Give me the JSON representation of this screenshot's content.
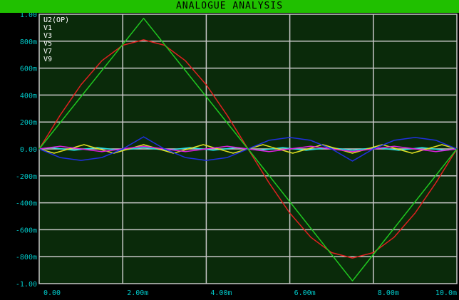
{
  "window": {
    "title": "ANALOGUE ANALYSIS"
  },
  "colors": {
    "title_bar": "#20c000",
    "plot_bg": "#0a2a0a",
    "grid": "#c8c8c8",
    "tick_text": "#00c8c8",
    "legend_text": "#ffffff"
  },
  "chart_data": {
    "type": "line",
    "title": "ANALOGUE ANALYSIS",
    "xlim": [
      0,
      10
    ],
    "ylim": [
      -1.0,
      1.0
    ],
    "grid": true,
    "legend_position": "top-left",
    "legend": [
      "U2(OP)",
      "V1",
      "V3",
      "V5",
      "V7",
      "V9"
    ],
    "x_ticks": [
      "0.00",
      "2.00m",
      "4.00m",
      "6.00m",
      "8.00m",
      "10.0m"
    ],
    "x_tick_values": [
      0,
      2,
      4,
      6,
      8,
      10
    ],
    "y_ticks": [
      "1.00",
      "800m",
      "600m",
      "400m",
      "200m",
      "0.00",
      "-200m",
      "-400m",
      "-600m",
      "-800m",
      "-1.00"
    ],
    "y_tick_values": [
      1.0,
      0.8,
      0.6,
      0.4,
      0.2,
      0.0,
      -0.2,
      -0.4,
      -0.6,
      -0.8,
      -1.0
    ],
    "series": [
      {
        "name": "U2(OP)",
        "color": "#20c820",
        "x": [
          0,
          2.5,
          5,
          7.5,
          10
        ],
        "y": [
          0,
          0.97,
          0,
          -0.98,
          0
        ]
      },
      {
        "name": "V1",
        "color": "#e02020",
        "x": [
          0,
          0.5,
          1,
          1.5,
          2,
          2.5,
          3,
          3.5,
          4,
          4.5,
          5,
          5.5,
          6,
          6.5,
          7,
          7.5,
          8,
          8.5,
          9,
          9.5,
          10
        ],
        "y": [
          0,
          0.25,
          0.476,
          0.655,
          0.77,
          0.81,
          0.77,
          0.655,
          0.476,
          0.25,
          0,
          -0.25,
          -0.476,
          -0.655,
          -0.77,
          -0.81,
          -0.77,
          -0.655,
          -0.476,
          -0.25,
          0
        ]
      },
      {
        "name": "V3",
        "color": "#2030e0",
        "x": [
          0,
          0.5,
          1,
          1.5,
          2,
          2.5,
          3,
          3.5,
          4,
          4.5,
          5,
          5.5,
          6,
          6.5,
          7,
          7.5,
          8,
          8.5,
          9,
          9.5,
          10
        ],
        "y": [
          0,
          -0.064,
          -0.085,
          -0.064,
          0,
          0.09,
          0,
          -0.064,
          -0.085,
          -0.064,
          0,
          0.064,
          0.085,
          0.064,
          0,
          -0.09,
          0,
          0.064,
          0.085,
          0.064,
          0
        ]
      },
      {
        "name": "V5",
        "color": "#e020e0",
        "x": [
          0,
          0.5,
          1,
          1.5,
          2,
          2.5,
          3,
          3.5,
          4,
          4.5,
          5,
          5.5,
          6,
          6.5,
          7,
          7.5,
          8,
          8.5,
          9,
          9.5,
          10
        ],
        "y": [
          0,
          0.02,
          0,
          -0.02,
          0,
          0.02,
          0,
          -0.02,
          0,
          0.02,
          0,
          -0.02,
          0,
          0.02,
          0,
          -0.02,
          0,
          0.02,
          0,
          -0.02,
          0
        ]
      },
      {
        "name": "V7",
        "color": "#e0e020",
        "x": [
          0,
          0.357,
          0.714,
          1.071,
          1.429,
          1.786,
          2.143,
          2.5,
          2.857,
          3.214,
          3.571,
          3.929,
          4.286,
          4.643,
          5,
          5.357,
          5.714,
          6.071,
          6.429,
          6.786,
          7.143,
          7.5,
          7.857,
          8.214,
          8.571,
          8.929,
          9.286,
          9.643,
          10
        ],
        "y": [
          0,
          -0.032,
          0,
          0.032,
          0,
          -0.032,
          0,
          0.032,
          0,
          -0.032,
          0,
          0.032,
          0,
          -0.032,
          0,
          0.032,
          0,
          -0.032,
          0,
          0.032,
          0,
          -0.032,
          0,
          0.032,
          0,
          -0.032,
          0,
          0.032,
          0
        ]
      },
      {
        "name": "V9",
        "color": "#20e0e0",
        "x": [
          0,
          0.278,
          0.556,
          0.833,
          1.111,
          1.389,
          1.667,
          1.944,
          2.222,
          2.5,
          2.778,
          3.056,
          3.333,
          3.611,
          3.889,
          4.167,
          4.444,
          4.722,
          5,
          5.278,
          5.556,
          5.833,
          6.111,
          6.389,
          6.667,
          6.944,
          7.222,
          7.5,
          7.778,
          8.056,
          8.333,
          8.611,
          8.889,
          9.167,
          9.444,
          9.722,
          10
        ],
        "y": [
          0,
          0.01,
          0,
          -0.01,
          0,
          0.01,
          0,
          -0.01,
          0,
          0.01,
          0,
          -0.01,
          0,
          0.01,
          0,
          -0.01,
          0,
          0.01,
          0,
          -0.01,
          0,
          0.01,
          0,
          -0.01,
          0,
          0.01,
          0,
          -0.01,
          0,
          0.01,
          0,
          -0.01,
          0,
          0.01,
          0,
          -0.01,
          0
        ]
      }
    ]
  }
}
